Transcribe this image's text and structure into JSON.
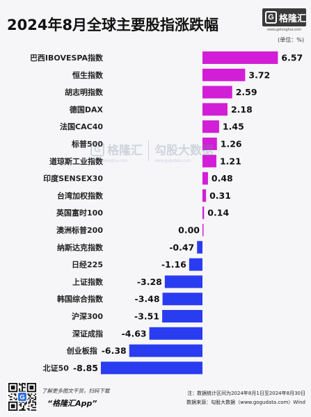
{
  "header": {
    "logo_icon": "G",
    "logo_text": "格隆汇",
    "logo_url": "www.gelonghui.com"
  },
  "watermark": {
    "left_icon": "G",
    "left_brand": "格隆汇",
    "left_url": "www.gelonghui.com",
    "right_brand": "勾股大数据",
    "right_url": "www.gogudata.com"
  },
  "chart_data": {
    "type": "bar",
    "orientation": "horizontal",
    "title": "2024年8月全球主要股指涨跌幅",
    "unit_label": "(单位：%)",
    "categories": [
      "巴西IBOVESPA指数",
      "恒生指数",
      "胡志明指数",
      "德国DAX",
      "法国CAC40",
      "标普500",
      "道琼斯工业指数",
      "印度SENSEX30",
      "台湾加权指数",
      "英国富时100",
      "澳洲标普200",
      "纳斯达克指数",
      "日经225",
      "上证指数",
      "韩国综合指数",
      "沪深300",
      "深证成指",
      "创业板指",
      "北证50"
    ],
    "values": [
      6.57,
      3.72,
      2.59,
      2.18,
      1.45,
      1.26,
      1.21,
      0.48,
      0.31,
      0.14,
      0.0,
      -0.47,
      -1.16,
      -3.28,
      -3.48,
      -3.51,
      -4.63,
      -6.38,
      -8.85
    ],
    "colors": {
      "positive": "#d21ed6",
      "negative": "#2a3cf0"
    },
    "grid": false,
    "legend": "none"
  },
  "footer": {
    "qr_logo": "G",
    "qr_caption": "了解更多图文干货，扫码下载",
    "app_name": "“格隆汇App”",
    "note": "注：数据统计区间为2024年8月1日至2024年8月30日",
    "source": "数据来源：勾股大数据（www.gogudata.com）Wind"
  }
}
